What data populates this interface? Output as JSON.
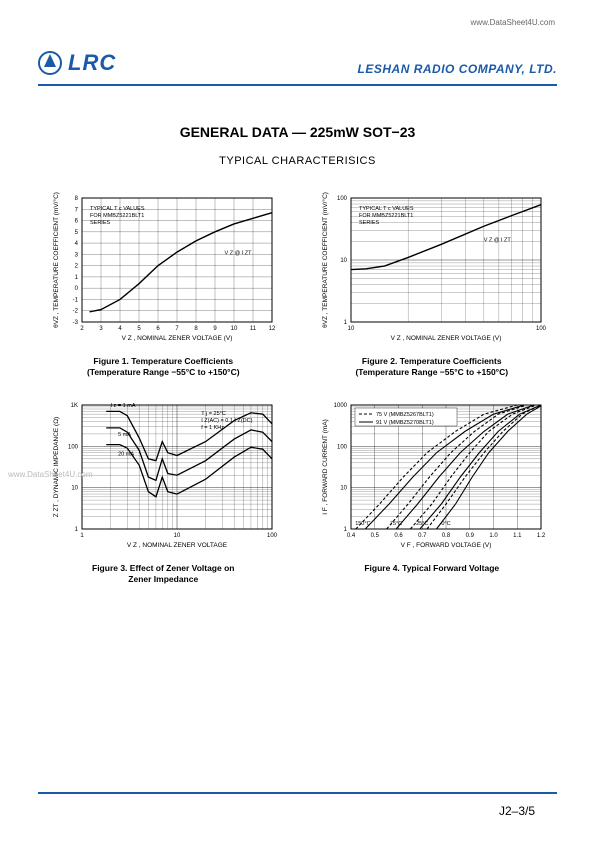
{
  "top_url": "www.DataSheet4U.com",
  "logo_text": "LRC",
  "company_name": "LESHAN RADIO COMPANY, LTD.",
  "main_title": "GENERAL DATA — 225mW SOT−23",
  "sub_title": "TYPICAL CHARACTERISICS",
  "watermark": "www.DataSheet4U.com",
  "page_num": "J2–3/5",
  "colors": {
    "brand": "#1a5aa8",
    "axis": "#000000",
    "grid": "#000000",
    "background": "#ffffff",
    "curve": "#000000"
  },
  "fig1": {
    "type": "line",
    "title": "Figure 1. Temperature Coefficients",
    "subtitle": "(Temperature Range −55°C to +150°C)",
    "xlabel": "V Z , NOMINAL ZENER VOLTAGE  (V)",
    "ylabel": "θVZ , TEMPERATURE COEFFICIENT  (mV/°C)",
    "xlim": [
      2,
      12
    ],
    "xtick_step": 1,
    "ylim": [
      -3,
      8
    ],
    "ytick_step": 1,
    "grid": true,
    "note": [
      "TYPICAL T c  VALUES",
      "FOR MMBZ5221BLT1",
      "SERIES"
    ],
    "annotation": "V Z @ I ZT",
    "curve": [
      [
        2.4,
        -2.1
      ],
      [
        3,
        -1.9
      ],
      [
        4,
        -1.0
      ],
      [
        5,
        0.4
      ],
      [
        6,
        2.0
      ],
      [
        7,
        3.2
      ],
      [
        8,
        4.2
      ],
      [
        9,
        5.0
      ],
      [
        10,
        5.7
      ],
      [
        11,
        6.2
      ],
      [
        12,
        6.7
      ]
    ],
    "line_width": 1.4
  },
  "fig2": {
    "type": "line-loglog",
    "title": "Figure 2. Temperature Coefficients",
    "subtitle": "(Temperature Range −55°C to +150°C)",
    "xlabel": "V Z , NOMINAL ZENER VOLTAGE  (V)",
    "ylabel": "θVZ , TEMPERATURE COEFFICIENT  (mV/°C)",
    "xlim": [
      10,
      100
    ],
    "xticks": [
      10,
      100
    ],
    "ylim": [
      1,
      100
    ],
    "yticks": [
      1,
      10,
      100
    ],
    "grid": true,
    "note": [
      "TYPICAL T c  VALUES",
      "FOR MMBZ5221BLT1",
      "SERIES"
    ],
    "annotation": "V Z @ I ZT",
    "curve": [
      [
        10,
        7
      ],
      [
        12,
        7.2
      ],
      [
        15,
        8
      ],
      [
        20,
        11
      ],
      [
        30,
        18
      ],
      [
        50,
        35
      ],
      [
        70,
        52
      ],
      [
        100,
        78
      ]
    ],
    "line_width": 1.4
  },
  "fig3": {
    "type": "line-loglog",
    "title": "Figure 3. Effect of Zener Voltage on",
    "subtitle": "Zener Impedance",
    "xlabel": "V Z , NOMINAL ZENER VOLTAGE",
    "ylabel": "Z ZT , DYNAMIC IMPEDANCE  (Ω)",
    "xlim": [
      1,
      100
    ],
    "xticks": [
      1,
      10,
      100
    ],
    "ylim": [
      1,
      1000
    ],
    "yticks": [
      1,
      10,
      100,
      1000
    ],
    "grid": true,
    "note": [
      "T j  = 25°C",
      "I Z(AC)  = 0.1 I Z(DC)",
      "f = 1 KHz"
    ],
    "series_labels": [
      "I z  = 1 mA",
      "5 mA",
      "20 mA"
    ],
    "curves": [
      [
        [
          1.8,
          700
        ],
        [
          2.5,
          700
        ],
        [
          3,
          550
        ],
        [
          4,
          160
        ],
        [
          5,
          50
        ],
        [
          6,
          45
        ],
        [
          7,
          130
        ],
        [
          8,
          70
        ],
        [
          10,
          60
        ],
        [
          20,
          130
        ],
        [
          40,
          420
        ],
        [
          60,
          650
        ],
        [
          80,
          600
        ],
        [
          100,
          350
        ]
      ],
      [
        [
          1.8,
          280
        ],
        [
          2.5,
          280
        ],
        [
          3,
          220
        ],
        [
          4,
          80
        ],
        [
          5,
          18
        ],
        [
          6,
          15
        ],
        [
          7,
          50
        ],
        [
          8,
          22
        ],
        [
          10,
          20
        ],
        [
          20,
          45
        ],
        [
          40,
          150
        ],
        [
          60,
          250
        ],
        [
          80,
          220
        ],
        [
          100,
          130
        ]
      ],
      [
        [
          1.8,
          110
        ],
        [
          2.5,
          110
        ],
        [
          3,
          90
        ],
        [
          4,
          35
        ],
        [
          5,
          8
        ],
        [
          6,
          6
        ],
        [
          7,
          18
        ],
        [
          8,
          8
        ],
        [
          10,
          7
        ],
        [
          20,
          16
        ],
        [
          40,
          55
        ],
        [
          60,
          95
        ],
        [
          80,
          85
        ],
        [
          100,
          50
        ]
      ]
    ],
    "line_width": 1.3
  },
  "fig4": {
    "type": "line-semilogy",
    "title": "Figure 4. Typical Forward Voltage",
    "subtitle": "",
    "xlabel": "V F , FORWARD VOLTAGE  (V)",
    "ylabel": "I F , FORWARD CURRENT  (mA)",
    "xlim": [
      0.4,
      1.2
    ],
    "xtick_step": 0.1,
    "ylim": [
      1,
      1000
    ],
    "yticks": [
      1,
      10,
      100,
      1000
    ],
    "grid": true,
    "legend": [
      "75 V (MMBZ5267BLT1)",
      "91 V (MMBZ5270BLT1)"
    ],
    "legend_styles": [
      "dashed",
      "solid"
    ],
    "temp_labels": [
      "150°C",
      "75°C",
      "25°C",
      "0°C"
    ],
    "curve_75V_0C": [
      [
        0.72,
        1
      ],
      [
        0.8,
        4
      ],
      [
        0.88,
        18
      ],
      [
        0.96,
        70
      ],
      [
        1.04,
        230
      ],
      [
        1.12,
        600
      ],
      [
        1.2,
        1000
      ]
    ],
    "curve_75V_25C": [
      [
        0.65,
        1
      ],
      [
        0.74,
        4
      ],
      [
        0.82,
        18
      ],
      [
        0.9,
        70
      ],
      [
        0.98,
        230
      ],
      [
        1.08,
        600
      ],
      [
        1.18,
        1000
      ]
    ],
    "curve_75V_75C": [
      [
        0.55,
        1
      ],
      [
        0.64,
        4
      ],
      [
        0.73,
        18
      ],
      [
        0.82,
        70
      ],
      [
        0.92,
        230
      ],
      [
        1.02,
        600
      ],
      [
        1.14,
        1000
      ]
    ],
    "curve_75V_150C": [
      [
        0.42,
        1
      ],
      [
        0.52,
        4
      ],
      [
        0.62,
        18
      ],
      [
        0.72,
        70
      ],
      [
        0.84,
        230
      ],
      [
        0.96,
        600
      ],
      [
        1.1,
        1000
      ]
    ],
    "curve_91V_0C": [
      [
        0.76,
        1
      ],
      [
        0.84,
        4
      ],
      [
        0.91,
        18
      ],
      [
        0.98,
        70
      ],
      [
        1.06,
        230
      ],
      [
        1.14,
        600
      ],
      [
        1.2,
        950
      ]
    ],
    "curve_91V_25C": [
      [
        0.69,
        1
      ],
      [
        0.78,
        4
      ],
      [
        0.86,
        18
      ],
      [
        0.94,
        70
      ],
      [
        1.02,
        230
      ],
      [
        1.11,
        600
      ],
      [
        1.2,
        1000
      ]
    ],
    "curve_91V_75C": [
      [
        0.59,
        1
      ],
      [
        0.68,
        4
      ],
      [
        0.77,
        18
      ],
      [
        0.86,
        70
      ],
      [
        0.96,
        230
      ],
      [
        1.06,
        600
      ],
      [
        1.17,
        1000
      ]
    ],
    "curve_91V_150C": [
      [
        0.46,
        1
      ],
      [
        0.56,
        4
      ],
      [
        0.66,
        18
      ],
      [
        0.76,
        70
      ],
      [
        0.88,
        230
      ],
      [
        1.0,
        600
      ],
      [
        1.13,
        1000
      ]
    ],
    "line_width": 1.1
  }
}
